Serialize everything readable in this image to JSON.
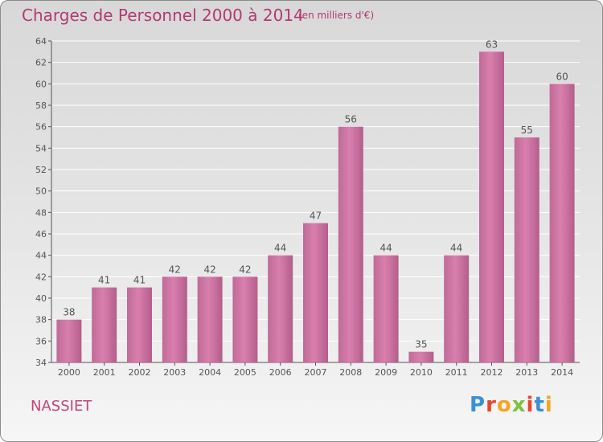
{
  "header": {
    "title": "Charges de Personnel 2000 à 2014",
    "subtitle": "(en milliers d'€)"
  },
  "footer": {
    "commune": "NASSIET",
    "logo_text": "Proxiti",
    "logo_colors": [
      "#3b8fd6",
      "#e8452c",
      "#f2a623",
      "#7cc242",
      "#e8452c",
      "#3b8fd6",
      "#f2a623"
    ]
  },
  "chart_data": {
    "type": "bar",
    "title": "Charges de Personnel 2000 à 2014",
    "subtitle": "(en milliers d'€)",
    "categories": [
      "2000",
      "2001",
      "2002",
      "2003",
      "2004",
      "2005",
      "2006",
      "2007",
      "2008",
      "2009",
      "2010",
      "2011",
      "2012",
      "2013",
      "2014"
    ],
    "values": [
      38,
      41,
      41,
      42,
      42,
      42,
      44,
      47,
      56,
      44,
      35,
      44,
      63,
      55,
      60
    ],
    "ylim": [
      34,
      64
    ],
    "yticks": [
      34,
      36,
      38,
      40,
      42,
      44,
      46,
      48,
      50,
      52,
      54,
      56,
      58,
      60,
      62,
      64
    ],
    "grid": true,
    "bar_color": "#d97fae",
    "label_color": "#555555",
    "axis_color": "#555555"
  }
}
